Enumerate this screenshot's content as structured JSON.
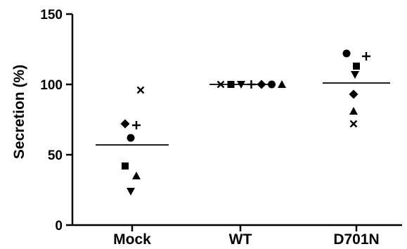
{
  "chart_data": {
    "type": "scatter",
    "title": "",
    "xlabel": "",
    "ylabel": "Secretion (%)",
    "ylim": [
      0,
      150
    ],
    "yticks": [
      0,
      50,
      100,
      150
    ],
    "grid": false,
    "legend": "none",
    "categories": [
      "Mock",
      "WT",
      "D701N"
    ],
    "marker_color": "#000000",
    "series": [
      {
        "marker": "cross-x",
        "values": [
          96,
          100,
          72
        ]
      },
      {
        "marker": "square",
        "values": [
          42,
          100,
          113
        ]
      },
      {
        "marker": "triangle-down",
        "values": [
          24,
          100,
          107
        ]
      },
      {
        "marker": "plus",
        "values": [
          71,
          100,
          120
        ]
      },
      {
        "marker": "diamond",
        "values": [
          72,
          100,
          93
        ]
      },
      {
        "marker": "circle",
        "values": [
          62,
          100,
          122
        ]
      },
      {
        "marker": "triangle-up",
        "values": [
          35,
          100,
          81
        ]
      }
    ],
    "means": [
      57,
      100,
      101
    ]
  }
}
